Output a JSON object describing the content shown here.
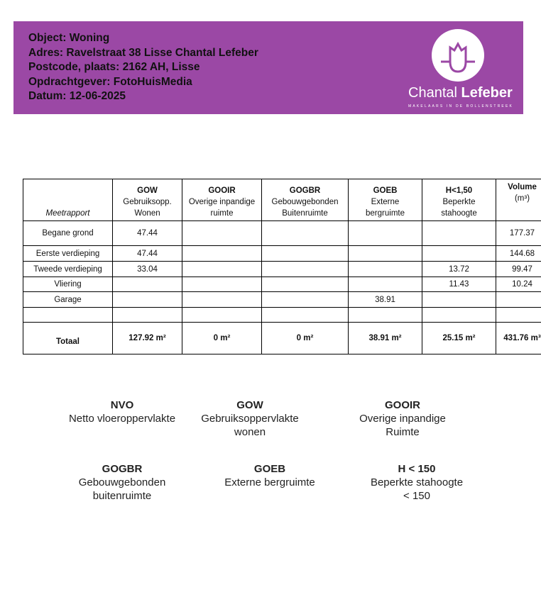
{
  "header": {
    "lines": [
      "Object: Woning",
      "Adres: Ravelstraat 38 Lisse Chantal Lefeber",
      "Postcode, plaats: 2162 AH, Lisse",
      "Opdrachtgever: FotoHuisMedia",
      "Datum: 12-06-2025"
    ],
    "logo": {
      "brand_light": "Chantal",
      "brand_bold": "Lefeber",
      "tagline": "MAKELAARS IN DE BOLLENSTREEK"
    },
    "color": "#9b48a5"
  },
  "table": {
    "corner": "Meetrapport",
    "columns": [
      {
        "code": "GOW",
        "desc": [
          "Gebruiksopp.",
          "Wonen"
        ]
      },
      {
        "code": "GOOIR",
        "desc": [
          "Overige inpandige",
          "ruimte"
        ]
      },
      {
        "code": "GOGBR",
        "desc": [
          "Gebouwgebonden",
          "Buitenruimte"
        ]
      },
      {
        "code": "GOEB",
        "desc": [
          "Externe",
          "bergruimte"
        ]
      },
      {
        "code": "H<1,50",
        "desc": [
          "Beperkte",
          "stahoogte"
        ]
      },
      {
        "code": "Volume",
        "desc": [
          "(m³)"
        ]
      }
    ],
    "rows": [
      [
        "Begane grond",
        "47.44",
        "",
        "",
        "",
        "",
        "177.37"
      ],
      [
        "Eerste verdieping",
        "47.44",
        "",
        "",
        "",
        "",
        "144.68"
      ],
      [
        "Tweede verdieping",
        "33.04",
        "",
        "",
        "",
        "13.72",
        "99.47"
      ],
      [
        "Vliering",
        "",
        "",
        "",
        "",
        "11.43",
        "10.24"
      ],
      [
        "Garage",
        "",
        "",
        "",
        "38.91",
        "",
        ""
      ],
      [
        "",
        "",
        "",
        "",
        "",
        "",
        ""
      ]
    ],
    "total": [
      "Totaal",
      "127.92 m²",
      "0 m²",
      "0 m²",
      "38.91 m²",
      "25.15 m²",
      "431.76 m³"
    ]
  },
  "legend": [
    {
      "code": "NVO",
      "desc": [
        "Netto vloeroppervlakte"
      ]
    },
    {
      "code": "GOW",
      "desc": [
        "Gebruiksoppervlakte",
        "wonen"
      ]
    },
    {
      "code": "GOOIR",
      "desc": [
        "Overige inpandige",
        "Ruimte"
      ]
    },
    {
      "code": "GOGBR",
      "desc": [
        "Gebouwgebonden",
        "buitenruimte"
      ]
    },
    {
      "code": "GOEB",
      "desc": [
        "Externe bergruimte"
      ]
    },
    {
      "code": "H < 150",
      "desc": [
        "Beperkte stahoogte",
        "< 150"
      ]
    }
  ]
}
